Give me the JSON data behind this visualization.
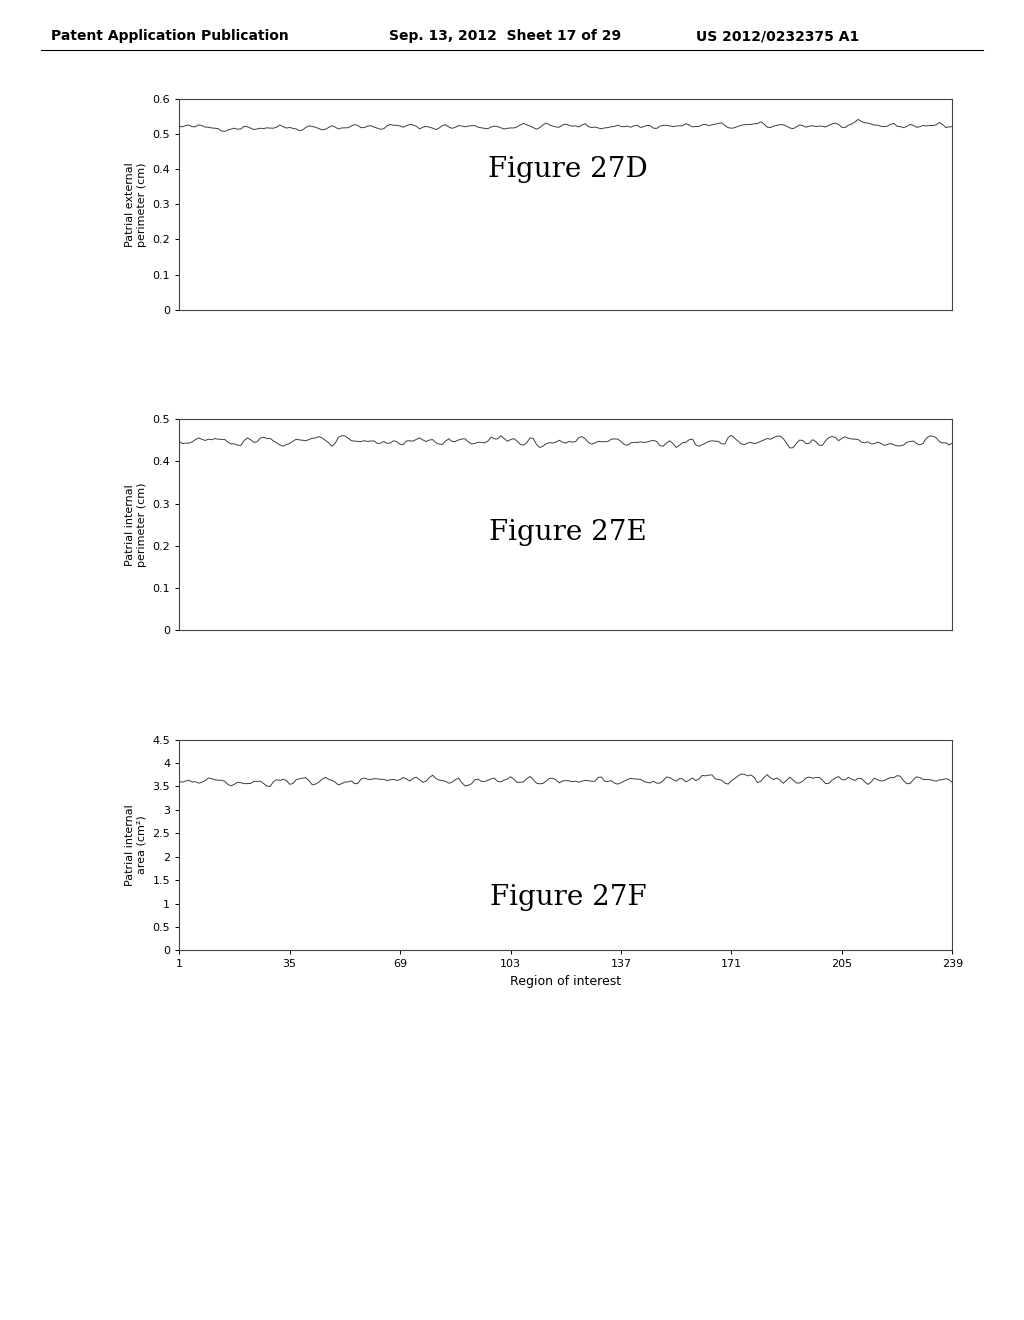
{
  "header_left": "Patent Application Publication",
  "header_center": "Sep. 13, 2012  Sheet 17 of 29",
  "header_right": "US 2012/0232375 A1",
  "fig27D": {
    "title": "Figure 27D",
    "ylabel_line1": "Patrial external",
    "ylabel_line2": "perimeter (cm)",
    "ylim": [
      0,
      0.6
    ],
    "yticks": [
      0,
      0.1,
      0.2,
      0.3,
      0.4,
      0.5,
      0.6
    ],
    "ytick_labels": [
      "0",
      "0.1",
      "0.2",
      "0.3",
      "0.4",
      "0.5",
      "0.6"
    ],
    "data_mean": 0.519,
    "data_noise": 0.008,
    "data_trend": 0.006,
    "n_points": 239
  },
  "fig27E": {
    "title": "Figure 27E",
    "ylabel_line1": "Patrial internal",
    "ylabel_line2": "perimeter (cm)",
    "ylim": [
      0,
      0.5
    ],
    "yticks": [
      0,
      0.1,
      0.2,
      0.3,
      0.4,
      0.5
    ],
    "ytick_labels": [
      "0",
      "0.1",
      "0.2",
      "0.3",
      "0.4",
      "0.5"
    ],
    "data_mean": 0.447,
    "data_noise": 0.01,
    "data_trend": 0.001,
    "n_points": 239
  },
  "fig27F": {
    "title": "Figure 27F",
    "ylabel_line1": "Patrial internal",
    "ylabel_line2": "area (cm²)",
    "xlabel": "Region of interest",
    "ylim": [
      0,
      4.5
    ],
    "yticks": [
      0,
      0.5,
      1.0,
      1.5,
      2.0,
      2.5,
      3.0,
      3.5,
      4.0,
      4.5
    ],
    "ytick_labels": [
      "0",
      "0.5",
      "1",
      "1.5",
      "2",
      "2.5",
      "3",
      "3.5",
      "4",
      "4.5"
    ],
    "data_mean": 3.62,
    "data_noise": 0.09,
    "data_trend": 0.02,
    "n_points": 239,
    "xticks": [
      1,
      35,
      69,
      103,
      137,
      171,
      205,
      239
    ]
  },
  "bg_color": "#ffffff",
  "line_color": "#2a2a2a",
  "font_color": "#000000",
  "title_fontsize": 20,
  "ylabel_fontsize": 8,
  "tick_fontsize": 8,
  "header_fontsize": 10
}
